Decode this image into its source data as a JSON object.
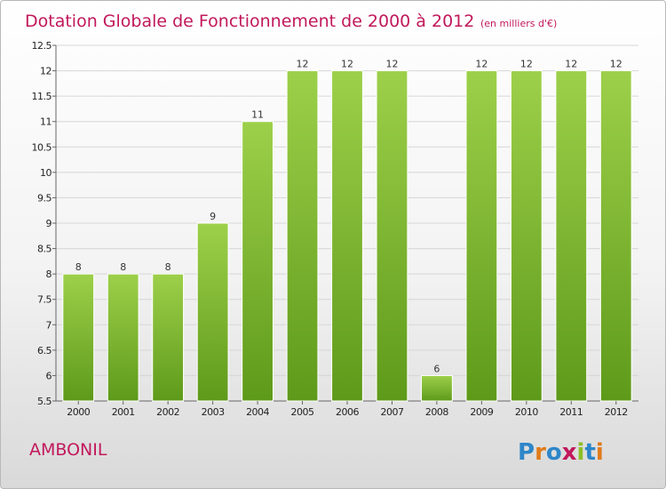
{
  "chart_data": {
    "type": "bar",
    "title": "Dotation Globale de Fonctionnement de 2000 à 2012",
    "subtitle": "(en milliers d'€)",
    "categories": [
      "2000",
      "2001",
      "2002",
      "2003",
      "2004",
      "2005",
      "2006",
      "2007",
      "2008",
      "2009",
      "2010",
      "2011",
      "2012"
    ],
    "values": [
      8,
      8,
      8,
      9,
      11,
      12,
      12,
      12,
      6,
      12,
      12,
      12,
      12
    ],
    "data_labels": [
      "8",
      "8",
      "8",
      "9",
      "11",
      "12",
      "12",
      "12",
      "6",
      "12",
      "12",
      "12",
      "12"
    ],
    "ylim": [
      5.5,
      12.5
    ],
    "yticks": [
      "5.5",
      "6",
      "6.5",
      "7",
      "7.5",
      "8",
      "8.5",
      "9",
      "9.5",
      "10",
      "10.5",
      "11",
      "11.5",
      "12",
      "12.5"
    ],
    "grid": true,
    "bar_color_top": "#9dd04a",
    "bar_color_bottom": "#5e9a1a",
    "xlabel": "",
    "ylabel": ""
  },
  "footer": {
    "commune": "AMBONIL",
    "logo_letters": [
      {
        "ch": "P",
        "color": "#2e86c9"
      },
      {
        "ch": "r",
        "color": "#e07b1a"
      },
      {
        "ch": "o",
        "color": "#2e86c9"
      },
      {
        "ch": "x",
        "color": "#c2185b"
      },
      {
        "ch": "i",
        "color": "#8cbf26"
      },
      {
        "ch": "t",
        "color": "#2e86c9"
      },
      {
        "ch": "i",
        "color": "#e07b1a"
      }
    ]
  }
}
